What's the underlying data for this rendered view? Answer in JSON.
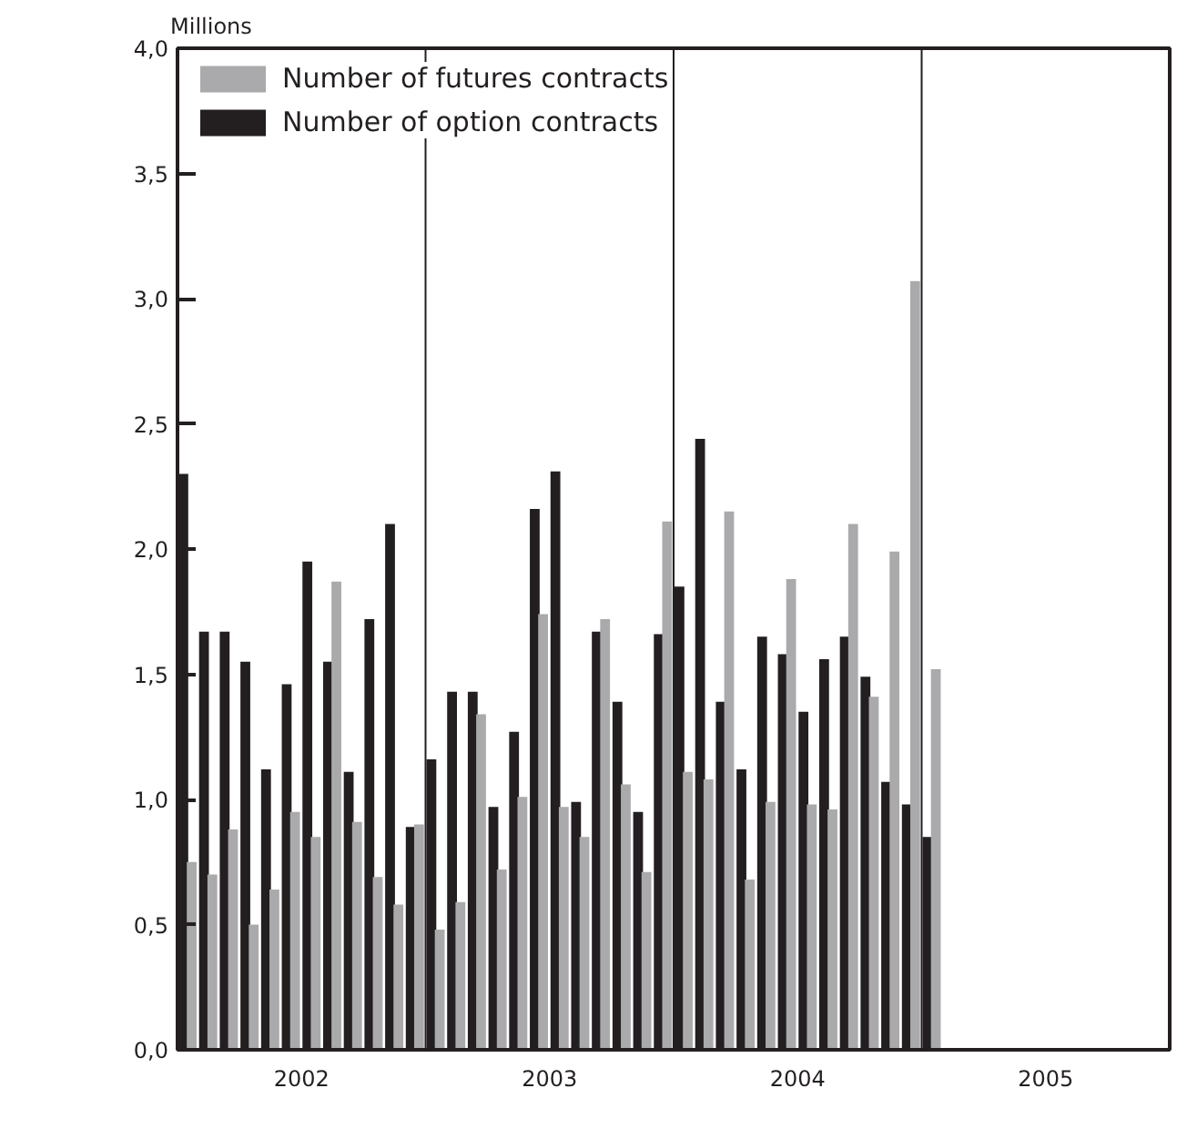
{
  "chart_data": {
    "type": "bar",
    "ylabel": "Millions",
    "x": [
      "2002-01-16",
      "2002-02-16",
      "2002-03-16",
      "2002-04-16",
      "2002-05-16",
      "2002-06-16",
      "2002-07-16",
      "2002-08-16",
      "2002-09-16",
      "2002-10-16",
      "2002-11-16",
      "2002-12-16",
      "2003-01-16",
      "2003-02-16",
      "2003-03-16",
      "2003-04-16",
      "2003-05-16",
      "2003-06-16",
      "2003-07-16",
      "2003-08-16",
      "2003-09-16",
      "2003-10-16",
      "2003-11-16",
      "2003-12-16",
      "2004-01-16",
      "2004-02-16",
      "2004-03-16",
      "2004-04-16",
      "2004-05-16",
      "2004-06-16",
      "2004-07-16",
      "2004-08-16",
      "2004-09-16",
      "2004-10-16",
      "2004-11-16",
      "2004-12-16",
      "2005-01-16"
    ],
    "series": [
      {
        "name": "Number of futures contracts",
        "color": "#aaaaad",
        "values": [
          0.75,
          0.7,
          0.88,
          0.5,
          0.64,
          0.95,
          0.85,
          1.87,
          0.91,
          0.69,
          0.58,
          0.9,
          0.48,
          0.59,
          1.34,
          0.72,
          1.01,
          1.74,
          0.97,
          0.85,
          1.72,
          1.06,
          0.71,
          2.11,
          1.11,
          1.08,
          2.15,
          0.68,
          0.99,
          1.88,
          0.98,
          0.96,
          2.1,
          1.41,
          1.99,
          3.07,
          1.52
        ]
      },
      {
        "name": "Number of option contracts",
        "color": "#231f20",
        "values": [
          2.3,
          1.67,
          1.67,
          1.55,
          1.12,
          1.46,
          1.95,
          1.55,
          1.11,
          1.72,
          2.1,
          0.89,
          1.16,
          1.43,
          1.43,
          0.97,
          1.27,
          2.16,
          2.31,
          0.99,
          1.67,
          1.39,
          0.95,
          1.66,
          1.85,
          2.44,
          1.39,
          1.12,
          1.65,
          1.58,
          1.35,
          1.56,
          1.65,
          1.49,
          1.07,
          0.98,
          0.85
        ]
      }
    ],
    "xlim": [
      "2002-01",
      "2006-01"
    ],
    "xticks": [
      {
        "value": "2002-07",
        "label": "2002"
      },
      {
        "value": "2003-07",
        "label": "2003"
      },
      {
        "value": "2004-07",
        "label": "2004"
      },
      {
        "value": "2005-07",
        "label": "2005"
      }
    ],
    "ylim": [
      0,
      4
    ],
    "yticks": [
      {
        "value": 0,
        "label": "0,0"
      },
      {
        "value": 0.5,
        "label": "0,5"
      },
      {
        "value": 1,
        "label": "1,0"
      },
      {
        "value": 1.5,
        "label": "1,5"
      },
      {
        "value": 2,
        "label": "2,0"
      },
      {
        "value": 2.5,
        "label": "2,5"
      },
      {
        "value": 3,
        "label": "3,0"
      },
      {
        "value": 3.5,
        "label": "3,5"
      },
      {
        "value": 4,
        "label": "4,0"
      }
    ],
    "ref_lines": [
      {
        "axis": "x",
        "value": "2003-01",
        "label": null,
        "color": "#231f20"
      },
      {
        "axis": "x",
        "value": "2004-01",
        "label": null,
        "color": "#231f20"
      },
      {
        "axis": "x",
        "value": "2005-01",
        "label": null,
        "color": "#231f20"
      }
    ],
    "grid": false,
    "legend": "top left"
  }
}
